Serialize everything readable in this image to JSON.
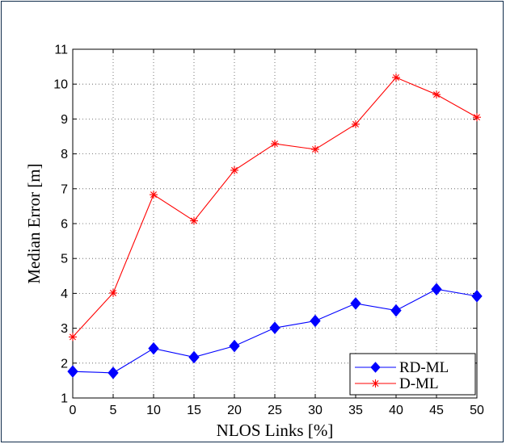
{
  "chart_data": {
    "type": "line",
    "title": "",
    "xlabel": "NLOS Links [%]",
    "ylabel": "Median Error [m]",
    "x": [
      0,
      5,
      10,
      15,
      20,
      25,
      30,
      35,
      40,
      45,
      50
    ],
    "xlim": [
      0,
      50
    ],
    "ylim": [
      1,
      11
    ],
    "xticks": [
      0,
      5,
      10,
      15,
      20,
      25,
      30,
      35,
      40,
      45,
      50
    ],
    "yticks": [
      1,
      2,
      3,
      4,
      5,
      6,
      7,
      8,
      9,
      10,
      11
    ],
    "grid": true,
    "legend_position": "bottom-right",
    "series": [
      {
        "name": "RD-ML",
        "color": "#0000ff",
        "marker": "diamond",
        "values": [
          1.76,
          1.72,
          2.42,
          2.17,
          2.49,
          3.01,
          3.21,
          3.71,
          3.51,
          4.12,
          3.92
        ]
      },
      {
        "name": "D-ML",
        "color": "#ff0000",
        "marker": "asterisk",
        "values": [
          2.75,
          4.01,
          6.83,
          6.08,
          7.53,
          8.29,
          8.13,
          8.85,
          10.19,
          9.7,
          9.05
        ]
      }
    ]
  }
}
